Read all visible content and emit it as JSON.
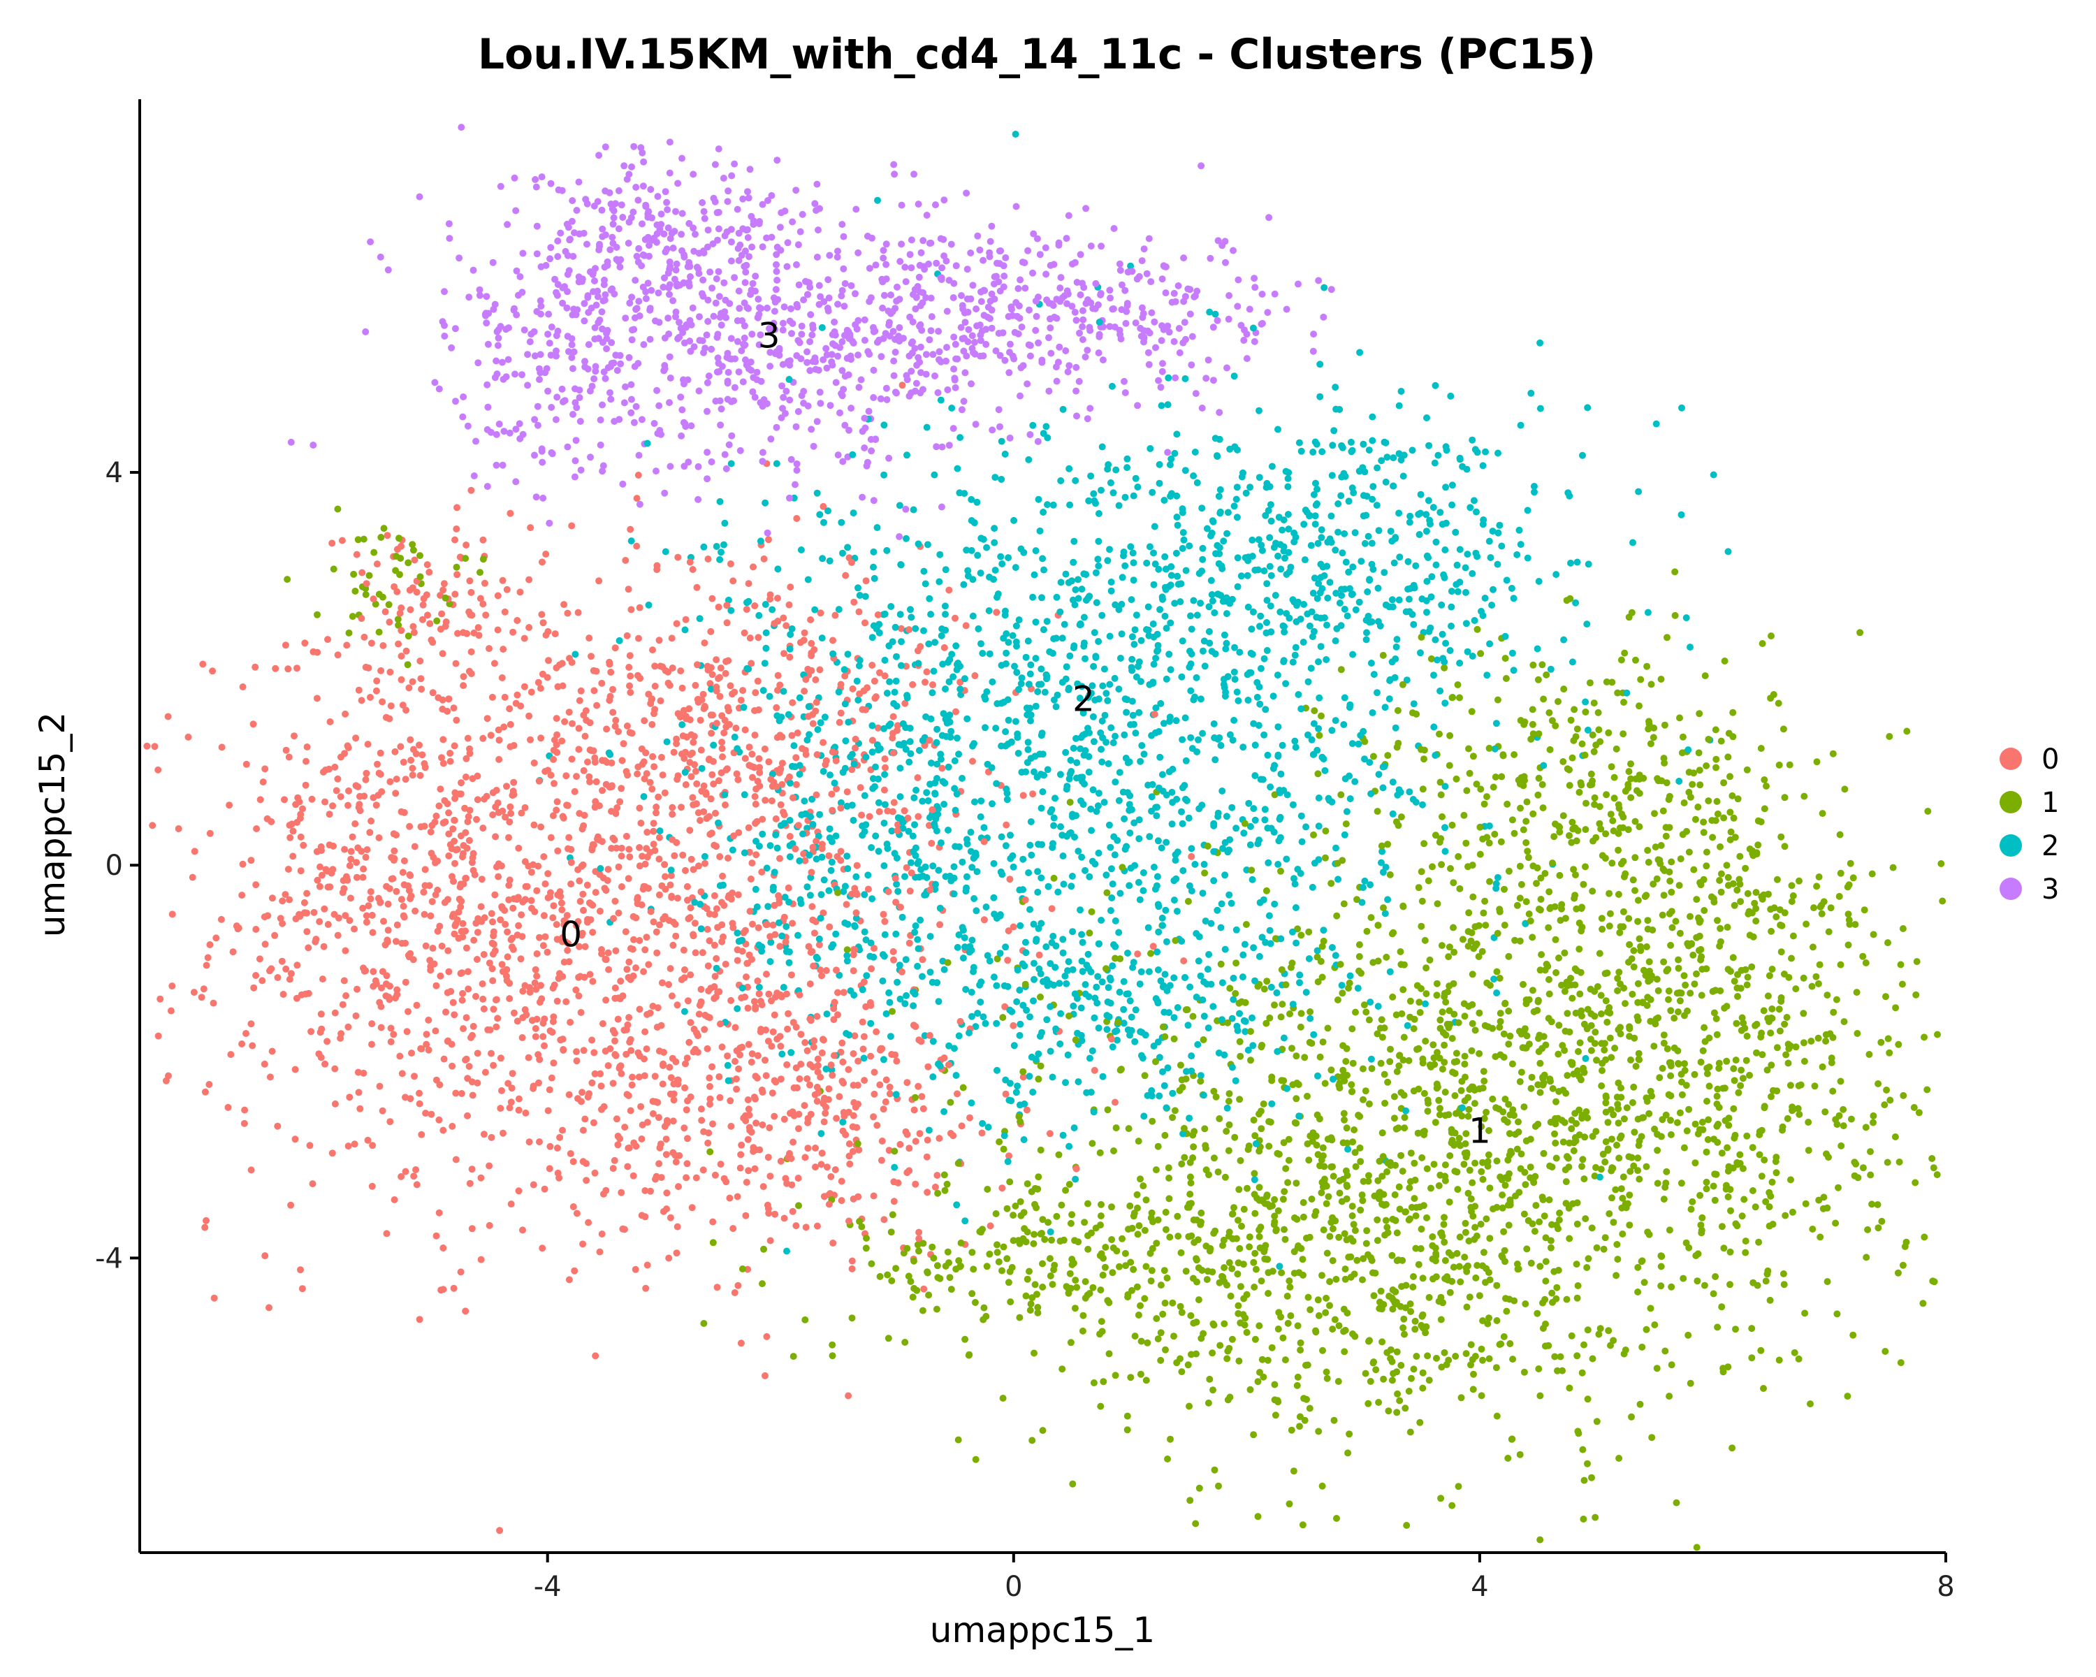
{
  "chart_data": {
    "type": "scatter",
    "title": "Lou.IV.15KM_with_cd4_14_11c - Clusters (PC15)",
    "xlabel": "umappc15_1",
    "ylabel": "umappc15_2",
    "xlim": [
      -7.5,
      8
    ],
    "ylim": [
      -7,
      7.8
    ],
    "x_ticks": [
      -4,
      0,
      4,
      8
    ],
    "x_tick_labels": [
      "-4",
      "0",
      "4",
      "8"
    ],
    "y_ticks": [
      -4,
      0,
      4
    ],
    "y_tick_labels": [
      "-4",
      "0",
      "4"
    ],
    "legend": {
      "placement": "right"
    },
    "grid": false,
    "clusters": [
      {
        "name": "0",
        "color": "#F8766D",
        "label_position": [
          -3.8,
          -0.7
        ],
        "blobs": [
          {
            "cx": -3.6,
            "cy": -0.6,
            "sx": 1.6,
            "sy": 1.6,
            "n": 1400
          },
          {
            "cx": -5.2,
            "cy": 0.2,
            "sx": 0.7,
            "sy": 1.3,
            "n": 300
          },
          {
            "cx": -2.2,
            "cy": 1.5,
            "sx": 0.9,
            "sy": 0.9,
            "n": 320
          },
          {
            "cx": -1.8,
            "cy": -2.5,
            "sx": 0.9,
            "sy": 0.7,
            "n": 300
          },
          {
            "cx": -5.0,
            "cy": 2.7,
            "sx": 0.5,
            "sy": 0.4,
            "n": 70
          }
        ]
      },
      {
        "name": "1",
        "color": "#7CAE00",
        "label_position": [
          4.0,
          -2.7
        ],
        "blobs": [
          {
            "cx": 4.2,
            "cy": -2.6,
            "sx": 1.9,
            "sy": 1.4,
            "n": 1500
          },
          {
            "cx": 5.8,
            "cy": -1.0,
            "sx": 0.9,
            "sy": 1.3,
            "n": 420
          },
          {
            "cx": 2.6,
            "cy": -4.2,
            "sx": 1.2,
            "sy": 0.9,
            "n": 420
          },
          {
            "cx": 0.3,
            "cy": -4.0,
            "sx": 0.9,
            "sy": 0.5,
            "n": 200
          },
          {
            "cx": 4.8,
            "cy": 0.9,
            "sx": 0.9,
            "sy": 0.8,
            "n": 250
          },
          {
            "cx": -5.4,
            "cy": 2.9,
            "sx": 0.3,
            "sy": 0.3,
            "n": 45
          }
        ]
      },
      {
        "name": "2",
        "color": "#00BFC4",
        "label_position": [
          0.6,
          1.7
        ],
        "blobs": [
          {
            "cx": 0.7,
            "cy": 1.4,
            "sx": 1.6,
            "sy": 1.6,
            "n": 1300
          },
          {
            "cx": 2.9,
            "cy": 3.1,
            "sx": 1.0,
            "sy": 0.8,
            "n": 420
          },
          {
            "cx": -1.2,
            "cy": 0.0,
            "sx": 0.8,
            "sy": 1.2,
            "n": 300
          },
          {
            "cx": 1.0,
            "cy": -1.5,
            "sx": 0.9,
            "sy": 0.6,
            "n": 220
          }
        ]
      },
      {
        "name": "3",
        "color": "#C77CFF",
        "label_position": [
          -2.1,
          5.4
        ],
        "blobs": [
          {
            "cx": -2.0,
            "cy": 5.4,
            "sx": 1.3,
            "sy": 0.7,
            "n": 700
          },
          {
            "cx": -3.2,
            "cy": 6.3,
            "sx": 0.6,
            "sy": 0.5,
            "n": 200
          },
          {
            "cx": 0.5,
            "cy": 5.6,
            "sx": 1.1,
            "sy": 0.4,
            "n": 320
          },
          {
            "cx": -4.1,
            "cy": 5.1,
            "sx": 0.4,
            "sy": 0.6,
            "n": 120
          }
        ]
      }
    ]
  }
}
